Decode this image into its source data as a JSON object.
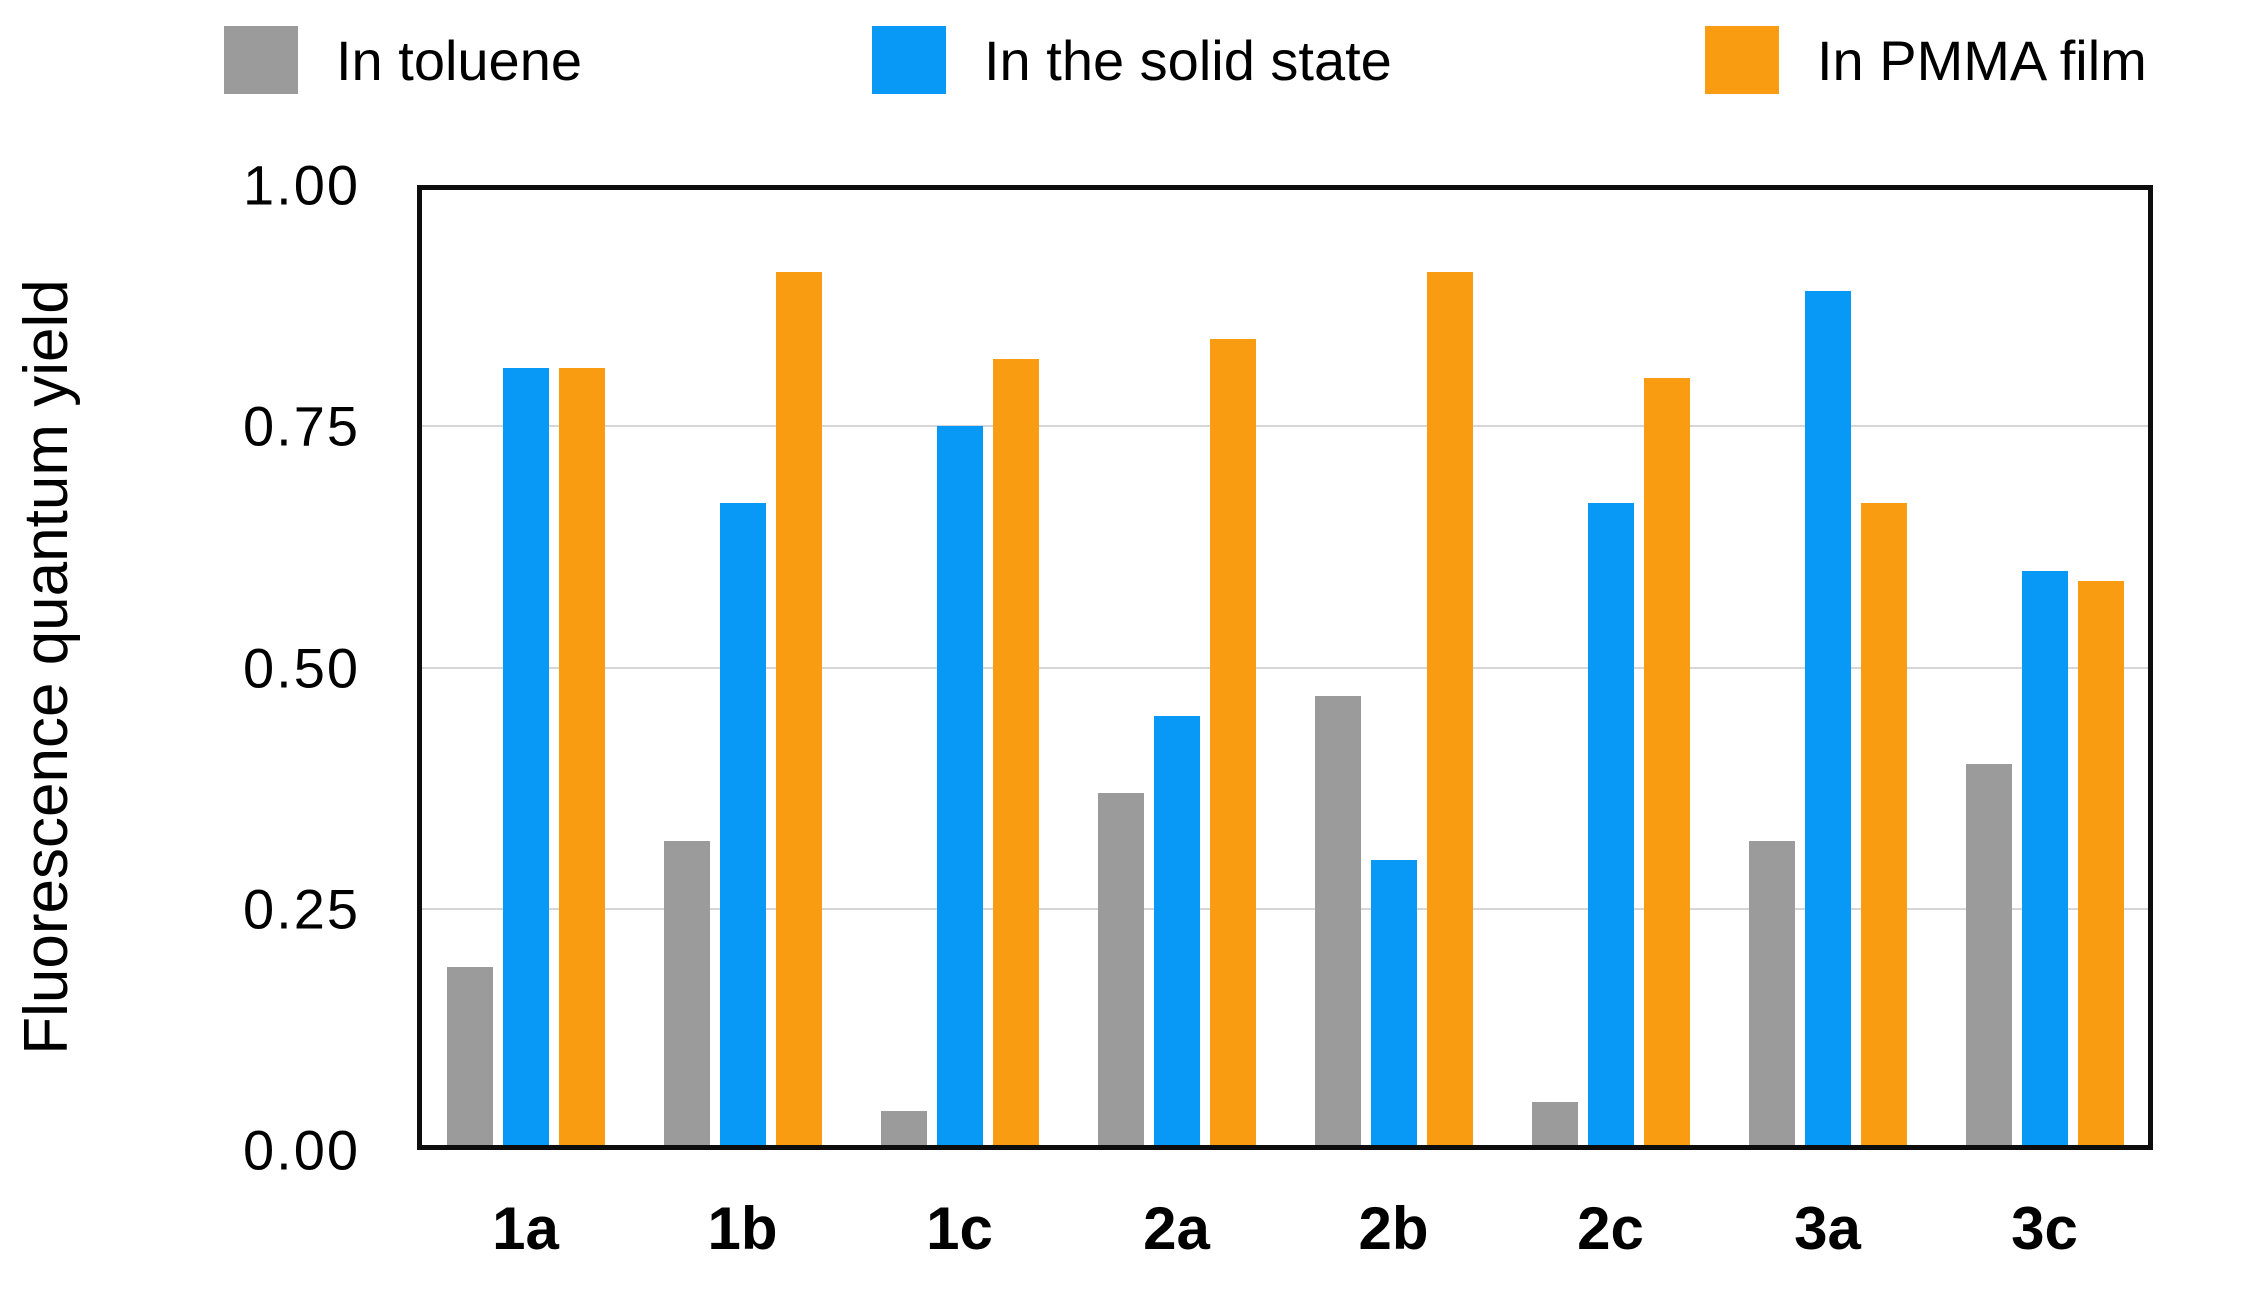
{
  "chart_data": {
    "type": "bar",
    "title": "",
    "xlabel": "",
    "ylabel": "Fluorescence quantum yield",
    "categories": [
      "1a",
      "1b",
      "1c",
      "2a",
      "2b",
      "2c",
      "3a",
      "3c"
    ],
    "series": [
      {
        "name": "In toluene",
        "color": "#9b9b9b",
        "values": [
          0.19,
          0.32,
          0.04,
          0.37,
          0.47,
          0.05,
          0.32,
          0.4
        ]
      },
      {
        "name": "In the solid state",
        "color": "#0899f7",
        "values": [
          0.81,
          0.67,
          0.75,
          0.45,
          0.3,
          0.67,
          0.89,
          0.6
        ]
      },
      {
        "name": "In PMMA film",
        "color": "#fa9c12",
        "values": [
          0.81,
          0.91,
          0.82,
          0.84,
          0.91,
          0.8,
          0.67,
          0.59
        ]
      }
    ],
    "ylim": [
      0,
      1
    ],
    "yticks": [
      "1.00",
      "0.75",
      "0.50",
      "0.25",
      "0.00"
    ],
    "ytick_values": [
      1.0,
      0.75,
      0.5,
      0.25,
      0.0
    ],
    "grid": "horizontal",
    "legend_position": "top",
    "frame_color": "#0d0d0d",
    "gridline_color": "#d6d6d6",
    "background_color": "#ffffff"
  }
}
